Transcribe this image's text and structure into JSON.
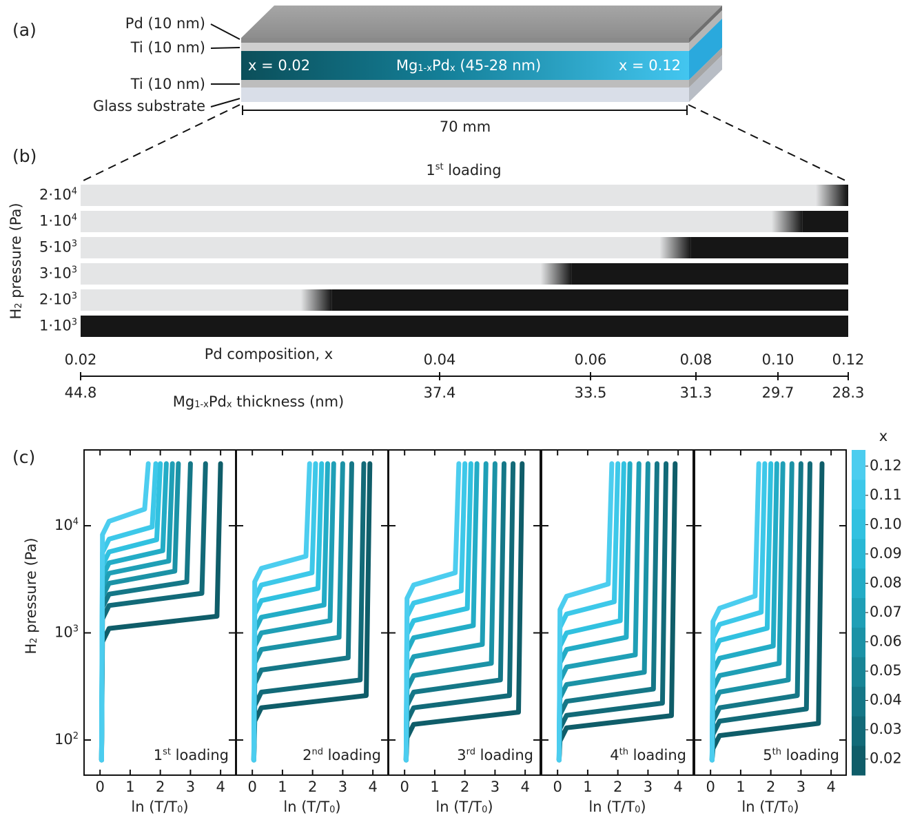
{
  "panel_a": {
    "label": "(a)",
    "pd": "Pd (10 nm)",
    "ti_top": "Ti (10 nm)",
    "ti_bottom": "Ti (10 nm)",
    "glass": "Glass substrate",
    "left": "x = 0.02",
    "right": "x = 0.12",
    "film": [
      "Mg",
      "1-x",
      "Pd",
      "x",
      " (45-28 nm)"
    ],
    "length": "70 mm"
  },
  "panel_b": {
    "label": "(b)",
    "title": [
      "1",
      "st",
      " loading"
    ],
    "ylabel": [
      "H",
      "2",
      " pressure (Pa)"
    ],
    "rows": [
      {
        "label": [
          "2·10",
          "4"
        ],
        "front": 0.1196
      },
      {
        "label": [
          "1·10",
          "4"
        ],
        "front": 0.107
      },
      {
        "label": [
          "5·10",
          "3"
        ],
        "front": 0.079
      },
      {
        "label": [
          "3·10",
          "3"
        ],
        "front": 0.0575
      },
      {
        "label": [
          "2·10",
          "3"
        ],
        "front": 0.034
      },
      {
        "label": [
          "1·10",
          "3"
        ],
        "front": 0.02
      }
    ],
    "composition_label": "Pd composition, x",
    "composition_ticks": [
      0.02,
      0.04,
      0.06,
      0.08,
      {
        "value": 0.1,
        "label": "0.10"
      },
      0.12
    ],
    "thickness_label": [
      "Mg",
      "1-x",
      "Pd",
      "x",
      " thickness (nm)"
    ],
    "thickness_ticks": [
      44.8,
      37.4,
      33.5,
      31.3,
      29.7,
      28.3
    ]
  },
  "colorbar": {
    "title": "x",
    "lim": [
      0.0145,
      0.1255
    ],
    "ticks": [
      0.02,
      0.03,
      0.04,
      0.05,
      0.06,
      0.07,
      0.08,
      0.09,
      {
        "value": 0.1,
        "label": "0.10"
      },
      0.11,
      0.12
    ],
    "colors": [
      "#0f5d69",
      "#126a78",
      "#157787",
      "#188596",
      "#1b92a6",
      "#1f9fb6",
      "#23acc6",
      "#29b8d5",
      "#31c1e0",
      "#3dc8e9",
      "#4ccdef"
    ]
  },
  "chart_data": [
    {
      "type": "line",
      "panel_label": "(c)",
      "ylabel": [
        "H",
        "2",
        " pressure (Pa)"
      ],
      "label": [
        "1",
        "st",
        " loading"
      ],
      "xlabel": [
        "ln (T/T",
        "0",
        ")"
      ],
      "xlim": [
        -0.53,
        4.5
      ],
      "xticks": [
        0,
        1,
        2,
        3,
        4
      ],
      "ylim": [
        47,
        51000
      ],
      "yscale": "log",
      "yticks": [
        {
          "value": 100,
          "label": "10",
          "exponent": "2"
        },
        {
          "value": 1000,
          "label": "10",
          "exponent": "3"
        },
        {
          "value": 10000,
          "label": "10",
          "exponent": "4"
        }
      ],
      "series": [
        {
          "color": "#0f5d69",
          "x": [
            0.05,
            0.08,
            0.3,
            3.88,
            4.0
          ],
          "values": [
            65,
            825,
            1100,
            1430,
            38000
          ]
        },
        {
          "color": "#126a78",
          "x": [
            0.05,
            0.08,
            0.3,
            3.38,
            3.5
          ],
          "values": [
            65,
            1350,
            1800,
            2340,
            38000
          ]
        },
        {
          "color": "#157787",
          "x": [
            0.05,
            0.08,
            0.3,
            2.88,
            3.0
          ],
          "values": [
            65,
            1725,
            2300,
            2990,
            38000
          ]
        },
        {
          "color": "#1b92a6",
          "x": [
            0.05,
            0.08,
            0.3,
            2.48,
            2.6
          ],
          "values": [
            65,
            2175,
            2900,
            3770,
            38000
          ]
        },
        {
          "color": "#1f9fb6",
          "x": [
            0.05,
            0.08,
            0.3,
            2.28,
            2.4
          ],
          "values": [
            65,
            2700,
            3600,
            4680,
            38000
          ]
        },
        {
          "color": "#23acc6",
          "x": [
            0.05,
            0.08,
            0.3,
            2.08,
            2.2
          ],
          "values": [
            65,
            3375,
            4500,
            5850,
            38000
          ]
        },
        {
          "color": "#31c1e0",
          "x": [
            0.05,
            0.08,
            0.3,
            1.88,
            2.0
          ],
          "values": [
            65,
            4275,
            5700,
            7410,
            38000
          ]
        },
        {
          "color": "#3dc8e9",
          "x": [
            0.05,
            0.08,
            0.3,
            1.73,
            1.85
          ],
          "values": [
            65,
            5625,
            7500,
            9750,
            38000
          ]
        },
        {
          "color": "#4ccdef",
          "x": [
            0.05,
            0.08,
            0.3,
            1.48,
            1.6
          ],
          "values": [
            65,
            8250,
            11000,
            14300,
            38000
          ]
        }
      ]
    },
    {
      "type": "line",
      "label": [
        "2",
        "nd",
        " loading"
      ],
      "xlabel": [
        "ln (T/T",
        "0",
        ")"
      ],
      "xlim": [
        -0.53,
        4.5
      ],
      "xticks": [
        0,
        1,
        2,
        3,
        4
      ],
      "ylim": [
        47,
        51000
      ],
      "yscale": "log",
      "yticks": [
        100,
        1000,
        10000
      ],
      "series": [
        {
          "color": "#0f5d69",
          "x": [
            0.05,
            0.08,
            0.3,
            3.78,
            3.9
          ],
          "values": [
            65,
            150,
            200,
            260,
            38000
          ]
        },
        {
          "color": "#126a78",
          "x": [
            0.05,
            0.08,
            0.3,
            3.58,
            3.7
          ],
          "values": [
            65,
            210,
            280,
            364,
            38000
          ]
        },
        {
          "color": "#157787",
          "x": [
            0.05,
            0.08,
            0.3,
            3.18,
            3.3
          ],
          "values": [
            65,
            338,
            450,
            585,
            38000
          ]
        },
        {
          "color": "#1b92a6",
          "x": [
            0.05,
            0.08,
            0.3,
            2.88,
            3.0
          ],
          "values": [
            65,
            525,
            700,
            910,
            38000
          ]
        },
        {
          "color": "#1f9fb6",
          "x": [
            0.05,
            0.08,
            0.3,
            2.58,
            2.7
          ],
          "values": [
            65,
            750,
            1000,
            1300,
            38000
          ]
        },
        {
          "color": "#23acc6",
          "x": [
            0.05,
            0.08,
            0.3,
            2.38,
            2.5
          ],
          "values": [
            65,
            1050,
            1400,
            1820,
            38000
          ]
        },
        {
          "color": "#31c1e0",
          "x": [
            0.05,
            0.08,
            0.3,
            2.18,
            2.3
          ],
          "values": [
            65,
            1500,
            2000,
            2600,
            38000
          ]
        },
        {
          "color": "#3dc8e9",
          "x": [
            0.05,
            0.08,
            0.3,
            1.98,
            2.1
          ],
          "values": [
            65,
            2100,
            2800,
            3640,
            38000
          ]
        },
        {
          "color": "#4ccdef",
          "x": [
            0.05,
            0.08,
            0.3,
            1.78,
            1.9
          ],
          "values": [
            65,
            3000,
            4000,
            5200,
            38000
          ]
        }
      ]
    },
    {
      "type": "line",
      "label": [
        "3",
        "rd",
        " loading"
      ],
      "xlabel": [
        "ln (T/T",
        "0",
        ")"
      ],
      "xlim": [
        -0.53,
        4.5
      ],
      "xticks": [
        0,
        1,
        2,
        3,
        4
      ],
      "ylim": [
        47,
        51000
      ],
      "yscale": "log",
      "yticks": [
        100,
        1000,
        10000
      ],
      "series": [
        {
          "color": "#0f5d69",
          "x": [
            0.05,
            0.08,
            0.3,
            3.78,
            3.9
          ],
          "values": [
            65,
            105,
            140,
            182,
            38000
          ]
        },
        {
          "color": "#126a78",
          "x": [
            0.05,
            0.08,
            0.3,
            3.48,
            3.6
          ],
          "values": [
            65,
            150,
            200,
            260,
            38000
          ]
        },
        {
          "color": "#157787",
          "x": [
            0.05,
            0.08,
            0.3,
            3.18,
            3.3
          ],
          "values": [
            65,
            210,
            280,
            364,
            38000
          ]
        },
        {
          "color": "#1b92a6",
          "x": [
            0.05,
            0.08,
            0.3,
            2.88,
            3.0
          ],
          "values": [
            65,
            300,
            400,
            520,
            38000
          ]
        },
        {
          "color": "#1f9fb6",
          "x": [
            0.05,
            0.08,
            0.3,
            2.58,
            2.7
          ],
          "values": [
            65,
            450,
            600,
            780,
            38000
          ]
        },
        {
          "color": "#23acc6",
          "x": [
            0.05,
            0.08,
            0.3,
            2.28,
            2.4
          ],
          "values": [
            65,
            675,
            900,
            1170,
            38000
          ]
        },
        {
          "color": "#31c1e0",
          "x": [
            0.05,
            0.08,
            0.3,
            2.08,
            2.2
          ],
          "values": [
            65,
            975,
            1300,
            1690,
            38000
          ]
        },
        {
          "color": "#3dc8e9",
          "x": [
            0.05,
            0.08,
            0.3,
            1.88,
            2.0
          ],
          "values": [
            65,
            1425,
            1900,
            2470,
            38000
          ]
        },
        {
          "color": "#4ccdef",
          "x": [
            0.05,
            0.08,
            0.3,
            1.68,
            1.8
          ],
          "values": [
            65,
            2100,
            2800,
            3640,
            38000
          ]
        }
      ]
    },
    {
      "type": "line",
      "label": [
        "4",
        "th",
        " loading"
      ],
      "xlabel": [
        "ln (T/T",
        "0",
        ")"
      ],
      "xlim": [
        -0.53,
        4.5
      ],
      "xticks": [
        0,
        1,
        2,
        3,
        4
      ],
      "ylim": [
        47,
        51000
      ],
      "yscale": "log",
      "yticks": [
        100,
        1000,
        10000
      ],
      "series": [
        {
          "color": "#0f5d69",
          "x": [
            0.05,
            0.08,
            0.3,
            3.78,
            3.9
          ],
          "values": [
            65,
            98,
            130,
            169,
            38000
          ]
        },
        {
          "color": "#126a78",
          "x": [
            0.05,
            0.08,
            0.3,
            3.48,
            3.6
          ],
          "values": [
            65,
            128,
            170,
            221,
            38000
          ]
        },
        {
          "color": "#157787",
          "x": [
            0.05,
            0.08,
            0.3,
            3.18,
            3.3
          ],
          "values": [
            65,
            173,
            230,
            299,
            38000
          ]
        },
        {
          "color": "#1b92a6",
          "x": [
            0.05,
            0.08,
            0.3,
            2.88,
            3.0
          ],
          "values": [
            65,
            248,
            330,
            429,
            38000
          ]
        },
        {
          "color": "#1f9fb6",
          "x": [
            0.05,
            0.08,
            0.3,
            2.58,
            2.7
          ],
          "values": [
            65,
            360,
            480,
            624,
            38000
          ]
        },
        {
          "color": "#23acc6",
          "x": [
            0.05,
            0.08,
            0.3,
            2.28,
            2.4
          ],
          "values": [
            65,
            525,
            700,
            910,
            38000
          ]
        },
        {
          "color": "#31c1e0",
          "x": [
            0.05,
            0.08,
            0.3,
            2.08,
            2.2
          ],
          "values": [
            65,
            750,
            1000,
            1300,
            38000
          ]
        },
        {
          "color": "#3dc8e9",
          "x": [
            0.05,
            0.08,
            0.3,
            1.88,
            2.0
          ],
          "values": [
            65,
            1125,
            1500,
            1950,
            38000
          ]
        },
        {
          "color": "#4ccdef",
          "x": [
            0.05,
            0.08,
            0.3,
            1.68,
            1.8
          ],
          "values": [
            65,
            1650,
            2200,
            2860,
            38000
          ]
        }
      ]
    },
    {
      "type": "line",
      "label": [
        "5",
        "th",
        " loading"
      ],
      "xlabel": [
        "ln (T/T",
        "0",
        ")"
      ],
      "xlim": [
        -0.53,
        4.5
      ],
      "xticks": [
        0,
        1,
        2,
        3,
        4
      ],
      "ylim": [
        47,
        51000
      ],
      "yscale": "log",
      "yticks": [
        100,
        1000,
        10000
      ],
      "series": [
        {
          "color": "#0f5d69",
          "x": [
            0.05,
            0.08,
            0.3,
            3.58,
            3.7
          ],
          "values": [
            65,
            83,
            110,
            143,
            38000
          ]
        },
        {
          "color": "#126a78",
          "x": [
            0.05,
            0.08,
            0.3,
            3.18,
            3.3
          ],
          "values": [
            65,
            113,
            150,
            195,
            38000
          ]
        },
        {
          "color": "#157787",
          "x": [
            0.05,
            0.08,
            0.3,
            2.88,
            3.0
          ],
          "values": [
            65,
            150,
            200,
            260,
            38000
          ]
        },
        {
          "color": "#1b92a6",
          "x": [
            0.05,
            0.08,
            0.3,
            2.58,
            2.7
          ],
          "values": [
            65,
            210,
            280,
            364,
            38000
          ]
        },
        {
          "color": "#1f9fb6",
          "x": [
            0.05,
            0.08,
            0.3,
            2.28,
            2.4
          ],
          "values": [
            65,
            300,
            400,
            520,
            38000
          ]
        },
        {
          "color": "#23acc6",
          "x": [
            0.05,
            0.08,
            0.3,
            2.08,
            2.2
          ],
          "values": [
            65,
            435,
            580,
            754,
            38000
          ]
        },
        {
          "color": "#31c1e0",
          "x": [
            0.05,
            0.08,
            0.3,
            1.88,
            2.0
          ],
          "values": [
            65,
            638,
            850,
            1105,
            38000
          ]
        },
        {
          "color": "#3dc8e9",
          "x": [
            0.05,
            0.08,
            0.3,
            1.68,
            1.8
          ],
          "values": [
            65,
            900,
            1200,
            1560,
            38000
          ]
        },
        {
          "color": "#4ccdef",
          "x": [
            0.05,
            0.08,
            0.3,
            1.48,
            1.6
          ],
          "values": [
            65,
            1275,
            1700,
            2210,
            38000
          ]
        }
      ]
    }
  ]
}
